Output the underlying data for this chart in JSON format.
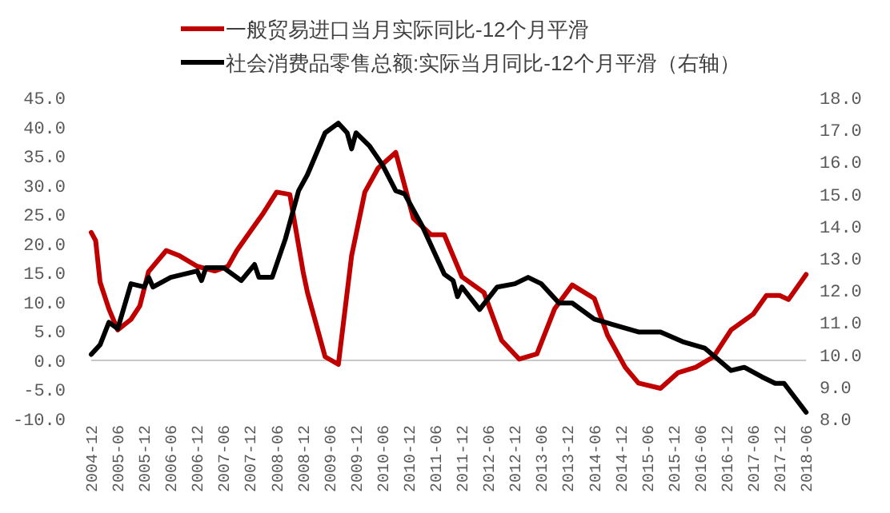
{
  "chart_data": {
    "type": "line",
    "legend": "top",
    "ref_lines": [
      {
        "axis": "y",
        "value": 0,
        "color": "#c8c8c8"
      }
    ],
    "xlim": [
      "2004-12",
      "2018-06"
    ],
    "xticks": [
      "2004-12",
      "2005-06",
      "2005-12",
      "2006-06",
      "2006-12",
      "2007-06",
      "2007-12",
      "2008-06",
      "2008-12",
      "2009-06",
      "2009-12",
      "2010-06",
      "2010-12",
      "2011-06",
      "2011-12",
      "2012-06",
      "2012-12",
      "2013-06",
      "2013-12",
      "2014-06",
      "2014-12",
      "2015-06",
      "2015-12",
      "2016-06",
      "2016-12",
      "2017-06",
      "2017-12",
      "2018-06"
    ],
    "ylim": [
      -10,
      45
    ],
    "yticks": [
      {
        "value": -10,
        "label": "-10.0"
      },
      {
        "value": -5,
        "label": "-5.0"
      },
      {
        "value": 0,
        "label": "0.0"
      },
      {
        "value": 5,
        "label": "5.0"
      },
      {
        "value": 10,
        "label": "10.0"
      },
      {
        "value": 15,
        "label": "15.0"
      },
      {
        "value": 20,
        "label": "20.0"
      },
      {
        "value": 25,
        "label": "25.0"
      },
      {
        "value": 30,
        "label": "30.0"
      },
      {
        "value": 35,
        "label": "35.0"
      },
      {
        "value": 40,
        "label": "40.0"
      },
      {
        "value": 45,
        "label": "45.0"
      }
    ],
    "y2lim": [
      8,
      18
    ],
    "y2ticks": [
      {
        "value": 8,
        "label": "8.0"
      },
      {
        "value": 9,
        "label": "9.0"
      },
      {
        "value": 10,
        "label": "10.0"
      },
      {
        "value": 11,
        "label": "11.0"
      },
      {
        "value": 12,
        "label": "12.0"
      },
      {
        "value": 13,
        "label": "13.0"
      },
      {
        "value": 14,
        "label": "14.0"
      },
      {
        "value": 15,
        "label": "15.0"
      },
      {
        "value": 16,
        "label": "16.0"
      },
      {
        "value": 17,
        "label": "17.0"
      },
      {
        "value": 18,
        "label": "18.0"
      }
    ],
    "series": [
      {
        "name": "一般贸易进口当月实际同比-12个月平滑",
        "color": "#c00000",
        "x": [
          "2004-12",
          "2005-01",
          "2005-02",
          "2005-04",
          "2005-06",
          "2005-09",
          "2005-11",
          "2006-01",
          "2006-05",
          "2006-08",
          "2006-12",
          "2007-04",
          "2007-07",
          "2007-09",
          "2007-12",
          "2008-03",
          "2008-06",
          "2008-09",
          "2008-12",
          "2009-01",
          "2009-05",
          "2009-08",
          "2009-11",
          "2010-02",
          "2010-05",
          "2010-09",
          "2011-01",
          "2011-05",
          "2011-08",
          "2011-12",
          "2012-05",
          "2012-09",
          "2013-01",
          "2013-05",
          "2013-09",
          "2014-01",
          "2014-06",
          "2014-09",
          "2015-01",
          "2015-04",
          "2015-09",
          "2016-01",
          "2016-05",
          "2016-09",
          "2017-01",
          "2017-06",
          "2017-09",
          "2017-12",
          "2018-02",
          "2018-06"
        ],
        "values": [
          21.9,
          20.5,
          13.4,
          8.8,
          5.2,
          7.0,
          9.3,
          15.2,
          18.8,
          17.9,
          16.1,
          15.3,
          16.1,
          18.8,
          22.0,
          25.2,
          28.8,
          28.4,
          15.2,
          11.6,
          0.6,
          -0.7,
          17.9,
          28.8,
          32.9,
          35.6,
          24.3,
          21.5,
          21.5,
          14.3,
          11.6,
          3.4,
          0.2,
          1.1,
          8.8,
          12.9,
          10.6,
          4.3,
          -1.2,
          -3.9,
          -4.8,
          -2.1,
          -1.2,
          0.6,
          5.2,
          7.9,
          11.1,
          11.1,
          10.4,
          14.7
        ]
      },
      {
        "name": "社会消费品零售总额:实际当月同比-12个月平滑（右轴）",
        "color": "#000000",
        "axis": "y2",
        "x": [
          "2004-12",
          "2005-02",
          "2005-04",
          "2005-06",
          "2005-09",
          "2005-12",
          "2006-01",
          "2006-02",
          "2006-06",
          "2006-12",
          "2007-01",
          "2007-02",
          "2007-06",
          "2007-10",
          "2008-01",
          "2008-02",
          "2008-05",
          "2008-08",
          "2008-11",
          "2009-01",
          "2009-05",
          "2009-08",
          "2009-10",
          "2009-11",
          "2009-12",
          "2010-03",
          "2010-06",
          "2010-09",
          "2010-11",
          "2011-01",
          "2011-03",
          "2011-08",
          "2011-10",
          "2011-11",
          "2011-12",
          "2012-04",
          "2012-08",
          "2012-12",
          "2013-03",
          "2013-06",
          "2013-10",
          "2014-01",
          "2014-06",
          "2015-04",
          "2015-09",
          "2016-02",
          "2016-07",
          "2017-01",
          "2017-04",
          "2017-08",
          "2017-11",
          "2018-01",
          "2018-06"
        ],
        "values": [
          10.0,
          10.3,
          11.0,
          10.8,
          12.2,
          12.1,
          12.4,
          12.1,
          12.4,
          12.6,
          12.3,
          12.7,
          12.7,
          12.3,
          12.8,
          12.4,
          12.4,
          13.6,
          15.1,
          15.6,
          16.9,
          17.2,
          16.9,
          16.4,
          16.9,
          16.5,
          15.9,
          15.1,
          15.0,
          14.5,
          14.0,
          12.5,
          12.3,
          11.8,
          12.1,
          11.4,
          12.1,
          12.2,
          12.4,
          12.2,
          11.6,
          11.6,
          11.1,
          10.7,
          10.7,
          10.4,
          10.2,
          9.5,
          9.6,
          9.3,
          9.1,
          9.1,
          8.2
        ]
      }
    ]
  }
}
